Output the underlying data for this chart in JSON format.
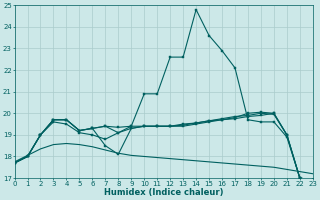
{
  "xlabel": "Humidex (Indice chaleur)",
  "xlim": [
    0,
    23
  ],
  "ylim": [
    17,
    25
  ],
  "yticks": [
    17,
    18,
    19,
    20,
    21,
    22,
    23,
    24,
    25
  ],
  "xticks": [
    0,
    1,
    2,
    3,
    4,
    5,
    6,
    7,
    8,
    9,
    10,
    11,
    12,
    13,
    14,
    15,
    16,
    17,
    18,
    19,
    20,
    21,
    22,
    23
  ],
  "background_color": "#cce8e8",
  "grid_color": "#aacccc",
  "line_color": "#006060",
  "series_with_markers": [
    [
      17.7,
      18.0,
      19.0,
      19.6,
      19.5,
      19.1,
      19.0,
      18.8,
      19.1,
      19.4,
      20.9,
      20.9,
      22.6,
      22.6,
      24.8,
      23.6,
      22.9,
      22.1,
      19.7,
      19.6,
      19.6,
      18.9,
      17.0,
      16.9
    ],
    [
      17.7,
      18.0,
      19.0,
      19.7,
      19.7,
      19.2,
      19.3,
      19.4,
      19.35,
      19.4,
      19.4,
      19.4,
      19.4,
      19.5,
      19.55,
      19.65,
      19.75,
      19.85,
      19.9,
      20.0,
      19.95,
      19.0,
      17.0,
      16.9
    ],
    [
      17.7,
      18.0,
      19.0,
      19.7,
      19.7,
      19.2,
      19.3,
      18.5,
      18.1,
      19.3,
      19.4,
      19.4,
      19.4,
      19.4,
      19.5,
      19.6,
      19.7,
      19.8,
      20.0,
      20.05,
      20.0,
      19.0,
      17.0,
      16.9
    ],
    [
      17.7,
      18.0,
      19.0,
      19.7,
      19.7,
      19.2,
      19.3,
      19.4,
      19.1,
      19.3,
      19.4,
      19.4,
      19.4,
      19.45,
      19.55,
      19.65,
      19.7,
      19.75,
      19.85,
      19.9,
      20.0,
      19.0,
      17.0,
      16.9
    ]
  ],
  "series_no_markers": [
    [
      17.75,
      18.05,
      18.35,
      18.55,
      18.6,
      18.55,
      18.45,
      18.3,
      18.15,
      18.05,
      18.0,
      17.95,
      17.9,
      17.85,
      17.8,
      17.75,
      17.7,
      17.65,
      17.6,
      17.55,
      17.5,
      17.4,
      17.3,
      17.2
    ]
  ]
}
